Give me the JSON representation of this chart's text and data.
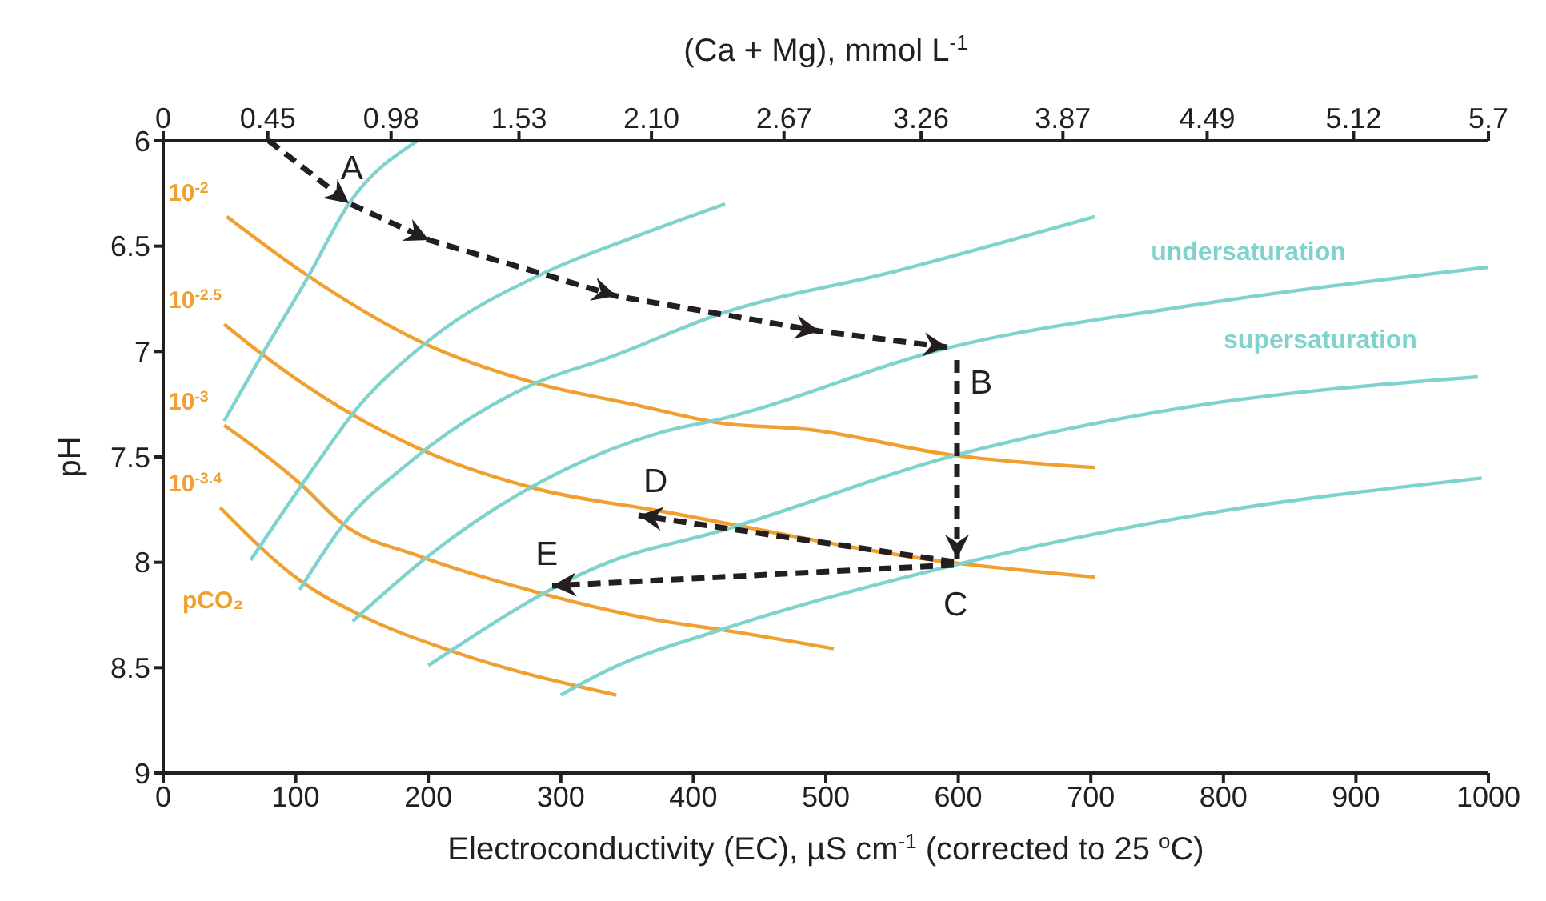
{
  "chart_data": {
    "type": "line",
    "x2label": "(Ca + Mg), mmol L$^{-1}$",
    "xlabel": "Electroconductivity (EC), µS cm$^{-1}$ (corrected to 25 $^{o}$C)",
    "ylabel": "pH",
    "legend_title": "pCO₂",
    "xlim": [
      0,
      1000
    ],
    "xticks": [
      0,
      100,
      200,
      300,
      400,
      500,
      600,
      700,
      800,
      900,
      1000
    ],
    "x2lim": [
      0,
      5.7
    ],
    "x2ticks": [
      0,
      {
        "value": 0.45,
        "label": "0.45"
      },
      {
        "value": 0.98,
        "label": "0.98"
      },
      {
        "value": 1.53,
        "label": "1.53"
      },
      {
        "value": 2.1,
        "label": "2.10"
      },
      {
        "value": 2.67,
        "label": "2.67"
      },
      {
        "value": 3.26,
        "label": "3.26"
      },
      {
        "value": 3.87,
        "label": "3.87"
      },
      {
        "value": 4.49,
        "label": "4.49"
      },
      {
        "value": 5.12,
        "label": "5.12"
      },
      5.7
    ],
    "ylim": [
      9,
      6
    ],
    "yticks": [
      6,
      6.5,
      7,
      7.5,
      8,
      8.5,
      9
    ],
    "series": [
      {
        "name": "10$^{-2}$",
        "color": "#f0a030",
        "x": [
          48,
          109,
          193,
          281,
          354,
          421,
          487,
          594,
          703
        ],
        "values": [
          6.36,
          6.64,
          6.95,
          7.15,
          7.25,
          7.34,
          7.37,
          7.49,
          7.55
        ]
      },
      {
        "name": "10$^{-2.5}$",
        "color": "#f0a030",
        "x": [
          46,
          76,
          140,
          200,
          281,
          378,
          594,
          703
        ],
        "values": [
          6.87,
          7.02,
          7.29,
          7.48,
          7.65,
          7.76,
          8.0,
          8.07
        ]
      },
      {
        "name": "10$^{-3}$",
        "color": "#f0a030",
        "x": [
          46,
          104,
          136,
          193,
          281,
          378,
          421,
          506
        ],
        "values": [
          7.35,
          7.63,
          7.82,
          7.97,
          8.14,
          8.28,
          8.32,
          8.41
        ]
      },
      {
        "name": "10$^{-3.4}$",
        "color": "#f0a030",
        "x": [
          43,
          104,
          152,
          217,
          342
        ],
        "values": [
          7.74,
          8.09,
          8.26,
          8.42,
          8.63
        ]
      },
      {
        "color": "#7fd3cc",
        "x": [
          46,
          76,
          109,
          140,
          192
        ],
        "values": [
          7.33,
          7.0,
          6.65,
          6.3,
          6.0
        ]
      },
      {
        "color": "#7fd3cc",
        "x": [
          66,
          116,
          145,
          200,
          290,
          354,
          424
        ],
        "values": [
          7.99,
          7.53,
          7.28,
          6.95,
          6.62,
          6.46,
          6.3
        ]
      },
      {
        "color": "#7fd3cc",
        "x": [
          103,
          136,
          185,
          281,
          336,
          421,
          552,
          703
        ],
        "values": [
          8.13,
          7.82,
          7.53,
          7.15,
          7.03,
          6.82,
          6.62,
          6.36
        ]
      },
      {
        "color": "#7fd3cc",
        "x": [
          143,
          200,
          378,
          421,
          594,
          767,
          1000
        ],
        "values": [
          8.28,
          7.97,
          7.38,
          7.32,
          6.98,
          6.79,
          6.6
        ]
      },
      {
        "color": "#7fd3cc",
        "x": [
          200,
          336,
          421,
          599,
          767,
          992
        ],
        "values": [
          8.49,
          8.0,
          7.85,
          7.49,
          7.27,
          7.12
        ]
      },
      {
        "color": "#7fd3cc",
        "x": [
          300,
          336,
          421,
          599,
          767,
          995
        ],
        "values": [
          8.63,
          8.51,
          8.32,
          8.01,
          7.79,
          7.6
        ]
      }
    ],
    "annotations": [
      {
        "text": "A",
        "x": 140,
        "y": 6.3
      },
      {
        "text": "B",
        "x": 598,
        "y": 7.0
      },
      {
        "text": "C",
        "x": 598,
        "y": 8.0
      },
      {
        "text": "D",
        "x": 357,
        "y": 7.78
      },
      {
        "text": "E",
        "x": 293,
        "y": 8.11
      },
      "undersaturation",
      "supersaturation"
    ]
  }
}
